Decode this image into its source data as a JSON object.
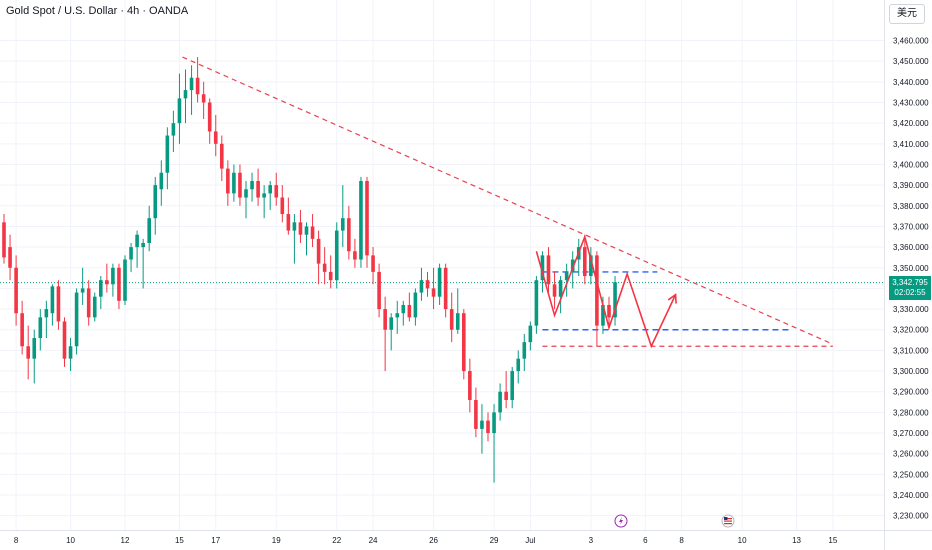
{
  "header": {
    "title": "Gold Spot / U.S. Dollar · 4h · OANDA",
    "currency_button": "美元"
  },
  "price_label": {
    "price": "3,342.795",
    "countdown": "02:02:55"
  },
  "colors": {
    "up": "#089981",
    "down": "#f23645",
    "trend": "#e8414f",
    "support": "#2962ff"
  },
  "icons": [
    "lightning-event-icon",
    "us-flag-event-icon"
  ],
  "chart_data": {
    "type": "candlestick",
    "title": "Gold Spot / U.S. Dollar · 4h · OANDA",
    "ylim": [
      3225,
      3468
    ],
    "y_ticks": [
      3230,
      3240,
      3250,
      3260,
      3270,
      3280,
      3290,
      3300,
      3310,
      3320,
      3330,
      3340,
      3350,
      3360,
      3370,
      3380,
      3390,
      3400,
      3410,
      3420,
      3430,
      3440,
      3450,
      3460
    ],
    "y_tick_labels": [
      "3,230.000",
      "3,240.000",
      "3,250.000",
      "3,260.000",
      "3,270.000",
      "3,280.000",
      "3,290.000",
      "3,300.000",
      "3,310.000",
      "3,320.000",
      "3,330.000",
      "3,340.000",
      "3,350.000",
      "3,360.000",
      "3,370.000",
      "3,380.000",
      "3,390.000",
      "3,400.000",
      "3,410.000",
      "3,420.000",
      "3,430.000",
      "3,440.000",
      "3,450.000",
      "3,460.000"
    ],
    "x_ticks": [
      {
        "label": "8",
        "t": 2
      },
      {
        "label": "10",
        "t": 11
      },
      {
        "label": "12",
        "t": 20
      },
      {
        "label": "15",
        "t": 29
      },
      {
        "label": "17",
        "t": 35
      },
      {
        "label": "19",
        "t": 45
      },
      {
        "label": "22",
        "t": 55
      },
      {
        "label": "24",
        "t": 61
      },
      {
        "label": "26",
        "t": 71
      },
      {
        "label": "29",
        "t": 81
      },
      {
        "label": "Jul",
        "t": 87
      },
      {
        "label": "3",
        "t": 97
      },
      {
        "label": "6",
        "t": 106
      },
      {
        "label": "8",
        "t": 112
      },
      {
        "label": "10",
        "t": 122
      },
      {
        "label": "13",
        "t": 131
      },
      {
        "label": "15",
        "t": 137
      }
    ],
    "current_price": 3342.795,
    "candles": [
      {
        "o": 3372,
        "h": 3376,
        "l": 3352,
        "c": 3355
      },
      {
        "o": 3360,
        "h": 3366,
        "l": 3344,
        "c": 3350
      },
      {
        "o": 3350,
        "h": 3356,
        "l": 3322,
        "c": 3328
      },
      {
        "o": 3328,
        "h": 3334,
        "l": 3308,
        "c": 3312
      },
      {
        "o": 3312,
        "h": 3322,
        "l": 3296,
        "c": 3306
      },
      {
        "o": 3306,
        "h": 3320,
        "l": 3294,
        "c": 3316
      },
      {
        "o": 3316,
        "h": 3330,
        "l": 3310,
        "c": 3326
      },
      {
        "o": 3326,
        "h": 3334,
        "l": 3316,
        "c": 3330
      },
      {
        "o": 3328,
        "h": 3342,
        "l": 3322,
        "c": 3341
      },
      {
        "o": 3341,
        "h": 3344,
        "l": 3320,
        "c": 3324
      },
      {
        "o": 3324,
        "h": 3326,
        "l": 3302,
        "c": 3306
      },
      {
        "o": 3306,
        "h": 3316,
        "l": 3300,
        "c": 3312
      },
      {
        "o": 3312,
        "h": 3340,
        "l": 3308,
        "c": 3338
      },
      {
        "o": 3338,
        "h": 3350,
        "l": 3332,
        "c": 3340
      },
      {
        "o": 3340,
        "h": 3344,
        "l": 3322,
        "c": 3326
      },
      {
        "o": 3326,
        "h": 3338,
        "l": 3324,
        "c": 3336
      },
      {
        "o": 3336,
        "h": 3346,
        "l": 3330,
        "c": 3344
      },
      {
        "o": 3344,
        "h": 3352,
        "l": 3338,
        "c": 3342
      },
      {
        "o": 3342,
        "h": 3352,
        "l": 3336,
        "c": 3350
      },
      {
        "o": 3350,
        "h": 3352,
        "l": 3330,
        "c": 3334
      },
      {
        "o": 3334,
        "h": 3356,
        "l": 3332,
        "c": 3354
      },
      {
        "o": 3354,
        "h": 3362,
        "l": 3348,
        "c": 3360
      },
      {
        "o": 3360,
        "h": 3368,
        "l": 3350,
        "c": 3366
      },
      {
        "o": 3360,
        "h": 3364,
        "l": 3340,
        "c": 3362
      },
      {
        "o": 3362,
        "h": 3380,
        "l": 3358,
        "c": 3374
      },
      {
        "o": 3374,
        "h": 3394,
        "l": 3366,
        "c": 3390
      },
      {
        "o": 3388,
        "h": 3402,
        "l": 3380,
        "c": 3396
      },
      {
        "o": 3396,
        "h": 3418,
        "l": 3388,
        "c": 3414
      },
      {
        "o": 3414,
        "h": 3426,
        "l": 3406,
        "c": 3420
      },
      {
        "o": 3420,
        "h": 3444,
        "l": 3410,
        "c": 3432
      },
      {
        "o": 3432,
        "h": 3446,
        "l": 3420,
        "c": 3436
      },
      {
        "o": 3436,
        "h": 3448,
        "l": 3424,
        "c": 3442
      },
      {
        "o": 3442,
        "h": 3452,
        "l": 3430,
        "c": 3434
      },
      {
        "o": 3434,
        "h": 3440,
        "l": 3422,
        "c": 3430
      },
      {
        "o": 3430,
        "h": 3432,
        "l": 3410,
        "c": 3416
      },
      {
        "o": 3416,
        "h": 3424,
        "l": 3404,
        "c": 3410
      },
      {
        "o": 3410,
        "h": 3414,
        "l": 3392,
        "c": 3398
      },
      {
        "o": 3398,
        "h": 3402,
        "l": 3380,
        "c": 3386
      },
      {
        "o": 3386,
        "h": 3400,
        "l": 3382,
        "c": 3396
      },
      {
        "o": 3396,
        "h": 3400,
        "l": 3380,
        "c": 3384
      },
      {
        "o": 3384,
        "h": 3392,
        "l": 3374,
        "c": 3388
      },
      {
        "o": 3388,
        "h": 3396,
        "l": 3382,
        "c": 3392
      },
      {
        "o": 3392,
        "h": 3398,
        "l": 3380,
        "c": 3384
      },
      {
        "o": 3384,
        "h": 3390,
        "l": 3374,
        "c": 3386
      },
      {
        "o": 3386,
        "h": 3392,
        "l": 3378,
        "c": 3390
      },
      {
        "o": 3390,
        "h": 3396,
        "l": 3380,
        "c": 3384
      },
      {
        "o": 3384,
        "h": 3390,
        "l": 3372,
        "c": 3376
      },
      {
        "o": 3376,
        "h": 3384,
        "l": 3366,
        "c": 3368
      },
      {
        "o": 3368,
        "h": 3376,
        "l": 3352,
        "c": 3372
      },
      {
        "o": 3372,
        "h": 3378,
        "l": 3362,
        "c": 3366
      },
      {
        "o": 3366,
        "h": 3372,
        "l": 3356,
        "c": 3370
      },
      {
        "o": 3370,
        "h": 3376,
        "l": 3360,
        "c": 3364
      },
      {
        "o": 3364,
        "h": 3368,
        "l": 3342,
        "c": 3352
      },
      {
        "o": 3352,
        "h": 3360,
        "l": 3342,
        "c": 3348
      },
      {
        "o": 3348,
        "h": 3356,
        "l": 3340,
        "c": 3344
      },
      {
        "o": 3344,
        "h": 3372,
        "l": 3340,
        "c": 3368
      },
      {
        "o": 3368,
        "h": 3390,
        "l": 3360,
        "c": 3374
      },
      {
        "o": 3374,
        "h": 3380,
        "l": 3354,
        "c": 3358
      },
      {
        "o": 3358,
        "h": 3364,
        "l": 3350,
        "c": 3354
      },
      {
        "o": 3354,
        "h": 3394,
        "l": 3350,
        "c": 3392
      },
      {
        "o": 3392,
        "h": 3394,
        "l": 3350,
        "c": 3356
      },
      {
        "o": 3356,
        "h": 3360,
        "l": 3342,
        "c": 3348
      },
      {
        "o": 3348,
        "h": 3352,
        "l": 3326,
        "c": 3330
      },
      {
        "o": 3330,
        "h": 3336,
        "l": 3300,
        "c": 3320
      },
      {
        "o": 3320,
        "h": 3328,
        "l": 3310,
        "c": 3326
      },
      {
        "o": 3326,
        "h": 3334,
        "l": 3318,
        "c": 3328
      },
      {
        "o": 3328,
        "h": 3334,
        "l": 3322,
        "c": 3332
      },
      {
        "o": 3332,
        "h": 3338,
        "l": 3324,
        "c": 3326
      },
      {
        "o": 3326,
        "h": 3340,
        "l": 3322,
        "c": 3338
      },
      {
        "o": 3338,
        "h": 3350,
        "l": 3334,
        "c": 3344
      },
      {
        "o": 3344,
        "h": 3348,
        "l": 3336,
        "c": 3340
      },
      {
        "o": 3340,
        "h": 3350,
        "l": 3330,
        "c": 3336
      },
      {
        "o": 3336,
        "h": 3352,
        "l": 3332,
        "c": 3350
      },
      {
        "o": 3350,
        "h": 3352,
        "l": 3326,
        "c": 3330
      },
      {
        "o": 3330,
        "h": 3338,
        "l": 3314,
        "c": 3320
      },
      {
        "o": 3320,
        "h": 3340,
        "l": 3318,
        "c": 3328
      },
      {
        "o": 3328,
        "h": 3330,
        "l": 3296,
        "c": 3300
      },
      {
        "o": 3300,
        "h": 3306,
        "l": 3280,
        "c": 3286
      },
      {
        "o": 3286,
        "h": 3292,
        "l": 3268,
        "c": 3272
      },
      {
        "o": 3272,
        "h": 3284,
        "l": 3260,
        "c": 3276
      },
      {
        "o": 3276,
        "h": 3280,
        "l": 3266,
        "c": 3270
      },
      {
        "o": 3270,
        "h": 3284,
        "l": 3246,
        "c": 3280
      },
      {
        "o": 3280,
        "h": 3294,
        "l": 3276,
        "c": 3290
      },
      {
        "o": 3290,
        "h": 3300,
        "l": 3282,
        "c": 3286
      },
      {
        "o": 3286,
        "h": 3302,
        "l": 3282,
        "c": 3300
      },
      {
        "o": 3300,
        "h": 3310,
        "l": 3294,
        "c": 3306
      },
      {
        "o": 3306,
        "h": 3318,
        "l": 3300,
        "c": 3314
      },
      {
        "o": 3314,
        "h": 3324,
        "l": 3310,
        "c": 3322
      },
      {
        "o": 3322,
        "h": 3346,
        "l": 3318,
        "c": 3344
      },
      {
        "o": 3344,
        "h": 3358,
        "l": 3338,
        "c": 3356
      },
      {
        "o": 3356,
        "h": 3360,
        "l": 3338,
        "c": 3342
      },
      {
        "o": 3342,
        "h": 3348,
        "l": 3330,
        "c": 3336
      },
      {
        "o": 3336,
        "h": 3346,
        "l": 3328,
        "c": 3344
      },
      {
        "o": 3344,
        "h": 3352,
        "l": 3336,
        "c": 3348
      },
      {
        "o": 3348,
        "h": 3358,
        "l": 3340,
        "c": 3354
      },
      {
        "o": 3354,
        "h": 3364,
        "l": 3346,
        "c": 3360
      },
      {
        "o": 3360,
        "h": 3366,
        "l": 3342,
        "c": 3346
      },
      {
        "o": 3346,
        "h": 3360,
        "l": 3342,
        "c": 3356
      },
      {
        "o": 3356,
        "h": 3358,
        "l": 3312,
        "c": 3322
      },
      {
        "o": 3322,
        "h": 3336,
        "l": 3318,
        "c": 3332
      },
      {
        "o": 3332,
        "h": 3336,
        "l": 3322,
        "c": 3326
      },
      {
        "o": 3326,
        "h": 3346,
        "l": 3322,
        "c": 3343
      }
    ],
    "annotations": {
      "trendline_from": {
        "t": 29.5,
        "p": 3452
      },
      "trendline_to": {
        "t": 137,
        "p": 3313
      },
      "upper_box_level": 3348,
      "upper_box_range_t": [
        89,
        108
      ],
      "support_level": 3320,
      "support_range_t": [
        89,
        130
      ],
      "low_level": 3312,
      "low_range_t": [
        89,
        137
      ],
      "zigzag_path": [
        {
          "t": 88,
          "p": 3358
        },
        {
          "t": 91,
          "p": 3327
        },
        {
          "t": 96,
          "p": 3365
        },
        {
          "t": 100,
          "p": 3321
        },
        {
          "t": 103,
          "p": 3347
        },
        {
          "t": 107,
          "p": 3312
        },
        {
          "t": 111,
          "p": 3337
        }
      ]
    }
  }
}
